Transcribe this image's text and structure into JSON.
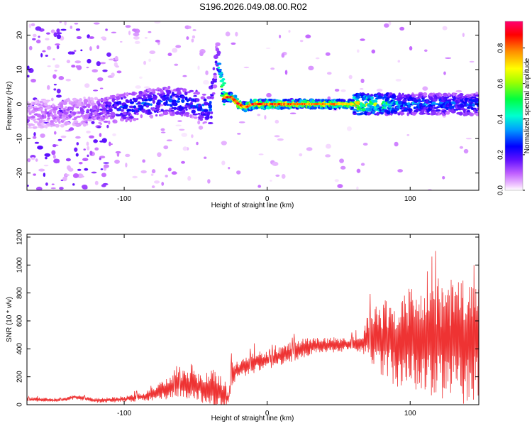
{
  "title": "S196.2026.049.08.00.R02",
  "chart_data": [
    {
      "type": "heatmap",
      "name": "spectrogram",
      "xlabel": "Height of straight line (km)",
      "ylabel": "Frequency (Hz)",
      "xlim": [
        -168,
        148
      ],
      "ylim": [
        -25,
        24
      ],
      "xticks": [
        -100,
        0,
        100
      ],
      "xtick_labels": [
        "-100",
        "0",
        "100"
      ],
      "yticks": [
        -20,
        -10,
        0,
        10,
        20
      ],
      "ytick_labels": [
        "-20",
        "-10",
        "0",
        "10",
        "20"
      ],
      "colorbar": {
        "label": "Normalized spectral amplitude",
        "range": [
          0,
          0.95
        ],
        "ticks": [
          0.0,
          0.2,
          0.4,
          0.6,
          0.8
        ],
        "tick_labels": [
          "0.0",
          "0.2",
          "0.4",
          "0.6",
          "0.8"
        ]
      },
      "ridge": {
        "x": [
          -168,
          -120,
          -100,
          -70,
          -50,
          -40,
          -35,
          -30,
          -25,
          -20,
          -15,
          -10,
          0,
          20,
          60,
          100,
          148
        ],
        "freq": [
          -3,
          -2,
          -1,
          1,
          0,
          -2,
          14,
          2,
          2,
          0,
          -1,
          0,
          0,
          0,
          0,
          0,
          0
        ],
        "amplitude": [
          0.1,
          0.15,
          0.3,
          0.3,
          0.3,
          0.35,
          0.2,
          0.85,
          0.8,
          0.85,
          0.8,
          0.85,
          0.85,
          0.8,
          0.75,
          0.35,
          0.3
        ]
      }
    },
    {
      "type": "line",
      "name": "snr",
      "xlabel": "Height of straight line (km)",
      "ylabel": "SNR (10 * v/v)",
      "xlim": [
        -168,
        148
      ],
      "ylim": [
        0,
        1220
      ],
      "xticks": [
        -100,
        0,
        100
      ],
      "xtick_labels": [
        "-100",
        "0",
        "100"
      ],
      "yticks": [
        0,
        200,
        400,
        600,
        800,
        1000,
        1200
      ],
      "ytick_labels": [
        "0",
        "200",
        "400",
        "600",
        "800",
        "1000",
        "1200"
      ],
      "color": "#ee3333",
      "envelope": {
        "x": [
          -168,
          -145,
          -135,
          -120,
          -100,
          -85,
          -75,
          -60,
          -50,
          -40,
          -35,
          -30,
          -27,
          -25,
          -20,
          -10,
          0,
          10,
          20,
          30,
          50,
          60,
          65,
          70,
          80,
          90,
          100,
          110,
          120,
          130,
          148
        ],
        "mean": [
          40,
          30,
          55,
          30,
          40,
          60,
          100,
          150,
          130,
          120,
          110,
          60,
          40,
          220,
          250,
          300,
          320,
          350,
          390,
          420,
          430,
          440,
          430,
          470,
          480,
          460,
          470,
          470,
          460,
          450,
          460
        ],
        "amp": [
          15,
          10,
          15,
          15,
          20,
          30,
          60,
          90,
          90,
          120,
          150,
          80,
          40,
          80,
          60,
          70,
          60,
          60,
          70,
          60,
          50,
          50,
          50,
          150,
          250,
          300,
          330,
          350,
          380,
          400,
          420
        ]
      }
    }
  ]
}
